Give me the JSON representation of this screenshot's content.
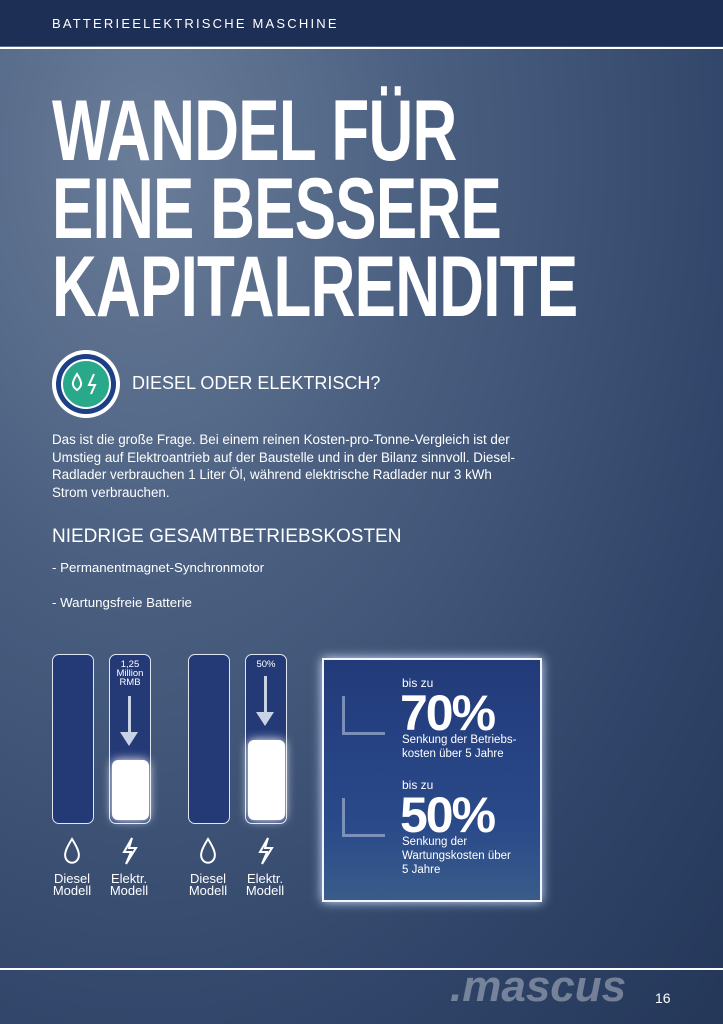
{
  "header": {
    "title": "BATTERIEELEKTRISCHE MASCHINE"
  },
  "headline": {
    "lines": [
      "WANDEL FÜR",
      "EINE BESSERE",
      "KAPITALRENDITE"
    ]
  },
  "section": {
    "heading": "DIESEL ODER ELEKTRISCH?",
    "paragraph": "Das ist die große Frage. Bei einem reinen Kosten-pro-Tonne-Vergleich ist der Umstieg auf Elektroantrieb auf der Baustelle und in der Bilanz sinnvoll. Diesel-Radlader verbrauchen 1 Liter Öl, während elektrische Radlader nur 3 kWh Strom verbrauchen."
  },
  "costs": {
    "heading": "NIEDRIGE GESAMTBETRIEBSKOSTEN",
    "bullets": [
      "- Permanentmagnet-Synchronmotor",
      "- Wartungsfreie Batterie"
    ]
  },
  "comparison": [
    {
      "annotation": [
        "1,25",
        "Million",
        "RMB"
      ],
      "diesel_label": [
        "Diesel",
        "Modell"
      ],
      "electric_label": [
        "Elektr.",
        "Modell"
      ]
    },
    {
      "annotation": [
        "50%"
      ],
      "diesel_label": [
        "Diesel",
        "Modell"
      ],
      "electric_label": [
        "Elektr.",
        "Modell"
      ]
    }
  ],
  "stats": [
    {
      "prefix": "bis zu",
      "value": "70%",
      "caption": [
        "Senkung der Betriebs-",
        "kosten über 5 Jahre"
      ]
    },
    {
      "prefix": "bis zu",
      "value": "50%",
      "caption": [
        "Senkung der",
        "Wartungskosten über",
        "5 Jahre"
      ]
    }
  ],
  "footer": {
    "watermark": ".mascus",
    "page_number": "16"
  }
}
